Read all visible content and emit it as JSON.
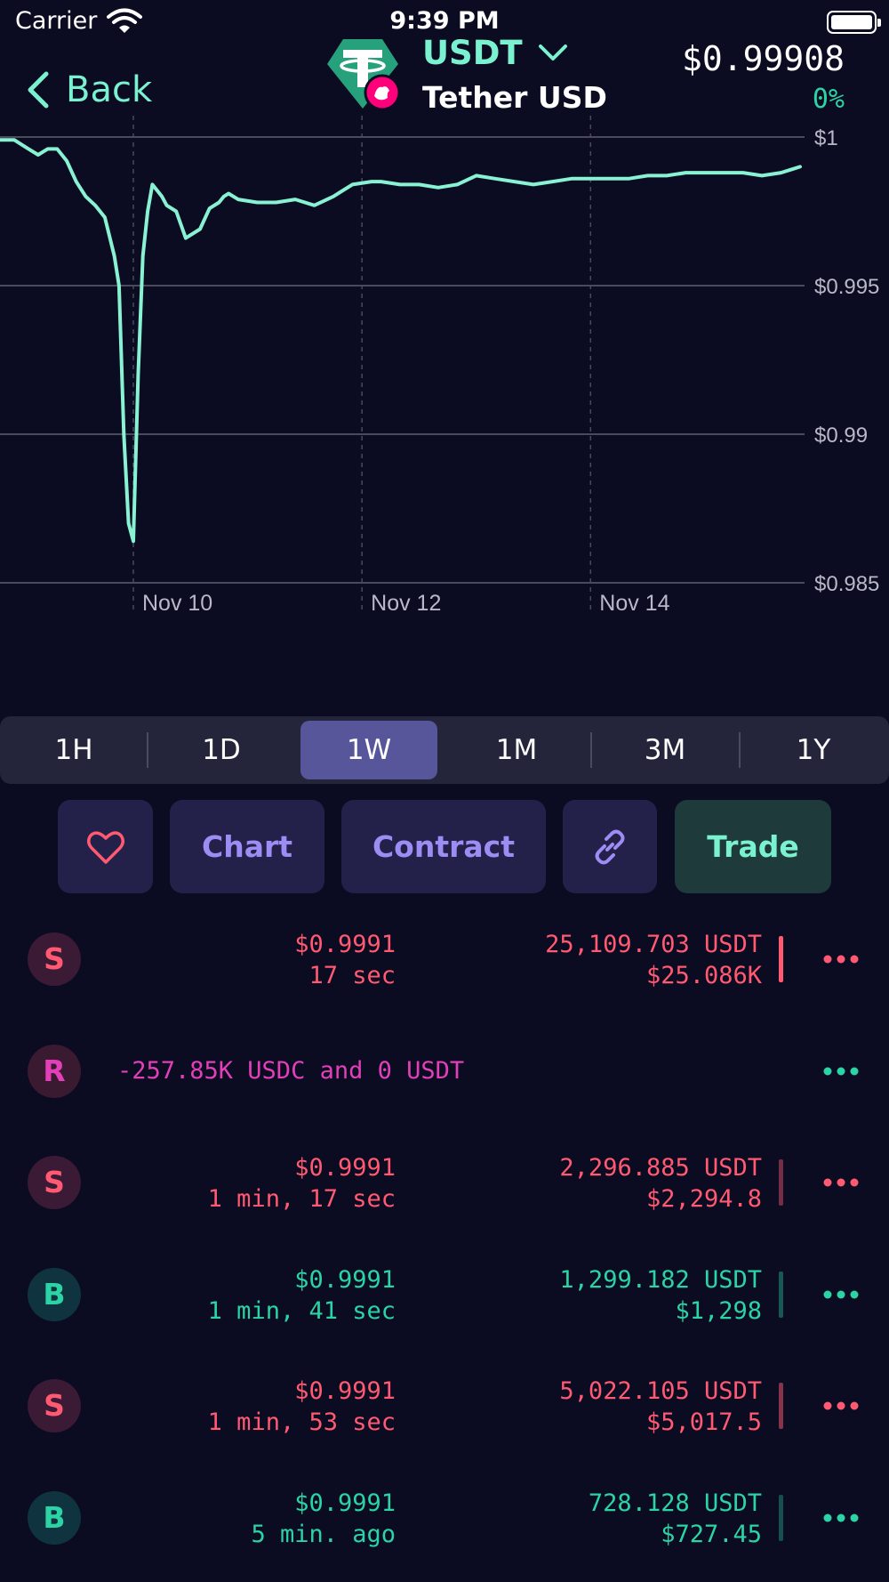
{
  "status_bar": {
    "carrier": "Carrier",
    "time": "9:39 PM"
  },
  "header": {
    "back_label": "Back",
    "token_symbol": "USDT",
    "token_name": "Tether USD",
    "price": "$0.99908",
    "change": "0%"
  },
  "chart_data": {
    "type": "line",
    "title": "",
    "xlabel": "",
    "ylabel": "",
    "y_ticks": [
      "$1",
      "$0.995",
      "$0.99",
      "$0.985"
    ],
    "y_tick_values": [
      1.0,
      0.995,
      0.99,
      0.985
    ],
    "ylim": [
      0.985,
      1.0
    ],
    "x_ticks": [
      "Nov 10",
      "Nov 12",
      "Nov 14"
    ],
    "x_tick_values": [
      "2022-11-10",
      "2022-11-12",
      "2022-11-14"
    ],
    "xlim": [
      "2022-11-08T20:00",
      "2022-11-15T20:00"
    ],
    "grid": true,
    "line_color": "#88f2d2",
    "series": [
      {
        "x": [
          "2022-11-08T20:00",
          "2022-11-08T23:00",
          "2022-11-09T02:00",
          "2022-11-09T04:00",
          "2022-11-09T06:00",
          "2022-11-09T08:00",
          "2022-11-09T10:00",
          "2022-11-09T12:00",
          "2022-11-09T14:00",
          "2022-11-09T16:00",
          "2022-11-09T18:00",
          "2022-11-09T20:00",
          "2022-11-09T21:00",
          "2022-11-09T22:00",
          "2022-11-09T23:00",
          "2022-11-10T00:00",
          "2022-11-10T01:00",
          "2022-11-10T02:00",
          "2022-11-10T03:00",
          "2022-11-10T04:00",
          "2022-11-10T06:00",
          "2022-11-10T07:00",
          "2022-11-10T09:00",
          "2022-11-10T11:00",
          "2022-11-10T14:00",
          "2022-11-10T16:00",
          "2022-11-10T18:00",
          "2022-11-10T19:00",
          "2022-11-10T20:00",
          "2022-11-10T22:00",
          "2022-11-11T02:00",
          "2022-11-11T06:00",
          "2022-11-11T10:00",
          "2022-11-11T14:00",
          "2022-11-11T18:00",
          "2022-11-11T22:00",
          "2022-11-12T02:00",
          "2022-11-12T04:00",
          "2022-11-12T08:00",
          "2022-11-12T12:00",
          "2022-11-12T16:00",
          "2022-11-12T20:00",
          "2022-11-13T00:00",
          "2022-11-13T04:00",
          "2022-11-13T08:00",
          "2022-11-13T12:00",
          "2022-11-13T16:00",
          "2022-11-13T20:00",
          "2022-11-14T00:00",
          "2022-11-14T04:00",
          "2022-11-14T08:00",
          "2022-11-14T12:00",
          "2022-11-14T16:00",
          "2022-11-14T20:00",
          "2022-11-15T00:00",
          "2022-11-15T04:00",
          "2022-11-15T08:00",
          "2022-11-15T12:00",
          "2022-11-15T16:00",
          "2022-11-15T20:00"
        ],
        "y": [
          0.9999,
          0.9999,
          0.9996,
          0.9994,
          0.9996,
          0.9996,
          0.9992,
          0.9985,
          0.998,
          0.9977,
          0.9973,
          0.996,
          0.995,
          0.99,
          0.987,
          0.9864,
          0.992,
          0.996,
          0.9975,
          0.9984,
          0.998,
          0.9977,
          0.9975,
          0.9966,
          0.9969,
          0.9976,
          0.9978,
          0.998,
          0.9981,
          0.9979,
          0.9978,
          0.9978,
          0.9979,
          0.9977,
          0.998,
          0.9984,
          0.9985,
          0.9985,
          0.9984,
          0.9984,
          0.9983,
          0.9984,
          0.9987,
          0.9986,
          0.9985,
          0.9984,
          0.9985,
          0.9986,
          0.9986,
          0.9986,
          0.9986,
          0.9987,
          0.9987,
          0.9988,
          0.9988,
          0.9988,
          0.9988,
          0.9987,
          0.9988,
          0.999
        ]
      }
    ]
  },
  "timeframes": [
    "1H",
    "1D",
    "1W",
    "1M",
    "3M",
    "1Y"
  ],
  "active_timeframe": "1W",
  "actions": {
    "chart": "Chart",
    "contract": "Contract",
    "trade": "Trade"
  },
  "trades": [
    {
      "type": "S",
      "price": "$0.9991",
      "time": "17 sec",
      "amount": "25,109.703 USDT",
      "usd": "$25.086K",
      "size": 1.0
    },
    {
      "type": "R",
      "description": "-257.85K USDC and 0 USDT"
    },
    {
      "type": "S",
      "price": "$0.9991",
      "time": "1 min, 17 sec",
      "amount": "2,296.885 USDT",
      "usd": "$2,294.8",
      "size": 0.3
    },
    {
      "type": "B",
      "price": "$0.9991",
      "time": "1 min, 41 sec",
      "amount": "1,299.182 USDT",
      "usd": "$1,298",
      "size": 0.25
    },
    {
      "type": "S",
      "price": "$0.9991",
      "time": "1 min, 53 sec",
      "amount": "5,022.105 USDT",
      "usd": "$5,017.5",
      "size": 0.4
    },
    {
      "type": "B",
      "price": "$0.9991",
      "time": "5 min. ago",
      "amount": "728.128 USDT",
      "usd": "$727.45",
      "size": 0.2
    }
  ]
}
